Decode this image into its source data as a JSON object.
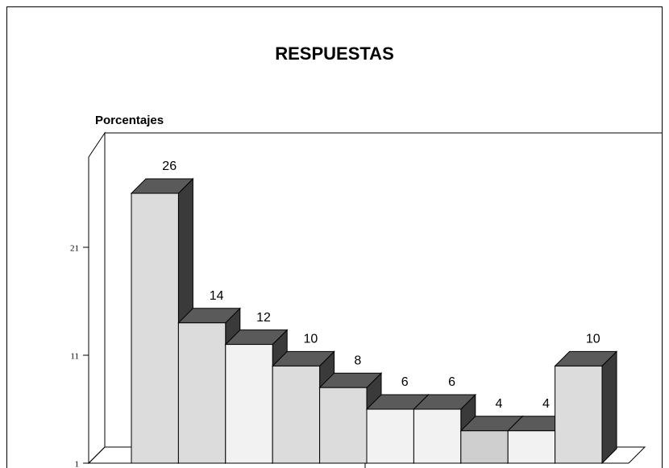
{
  "chart_data": {
    "type": "bar3d",
    "title": "RESPUESTAS",
    "y_label": "Porcentajes",
    "categories": [
      null,
      null,
      null,
      null,
      null,
      null,
      null,
      null,
      null,
      null
    ],
    "values": [
      26,
      14,
      12,
      10,
      8,
      6,
      6,
      4,
      4,
      10
    ],
    "colors": [
      "#dcdcdc",
      "#dcdcdc",
      "#f2f2f2",
      "#dcdcdc",
      "#dcdcdc",
      "#f2f2f2",
      "#f2f2f2",
      "#cfcfcf",
      "#f2f2f2",
      "#dcdcdc"
    ],
    "ylim": [
      1,
      31
    ],
    "yticks": [
      1,
      11,
      21
    ],
    "grid": false
  }
}
